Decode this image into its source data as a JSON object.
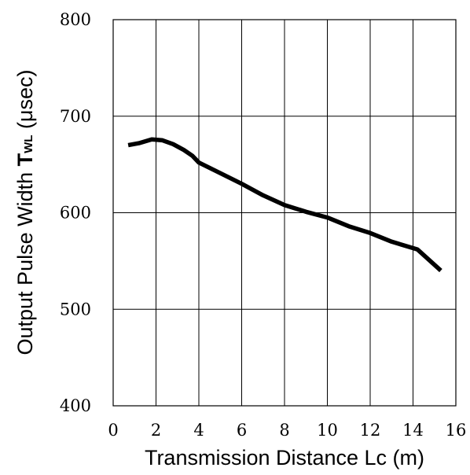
{
  "chart_data": {
    "type": "line",
    "title": "",
    "xlabel": "Transmission Distance Lc (m)",
    "ylabel": {
      "prefix": "Output Pulse Width ",
      "symbol": "T",
      "subscript": "WL",
      "suffix": " (μsec)"
    },
    "xlim": [
      0,
      16
    ],
    "ylim": [
      400,
      800
    ],
    "xticks": [
      0,
      2,
      4,
      6,
      8,
      10,
      12,
      14,
      16
    ],
    "yticks": [
      400,
      500,
      600,
      700,
      800
    ],
    "grid": true,
    "series": [
      {
        "x": [
          0.7,
          1.2,
          1.8,
          2.3,
          2.8,
          3.3,
          3.7,
          4.0,
          5.0,
          6.0,
          7.0,
          8.0,
          9.0,
          10.0,
          11.0,
          12.0,
          13.0,
          14.2,
          15.3
        ],
        "y": [
          670,
          672,
          676,
          675,
          671,
          665,
          659,
          652,
          641,
          630,
          618,
          608,
          601,
          595,
          586,
          579,
          570,
          562,
          540
        ]
      }
    ]
  }
}
